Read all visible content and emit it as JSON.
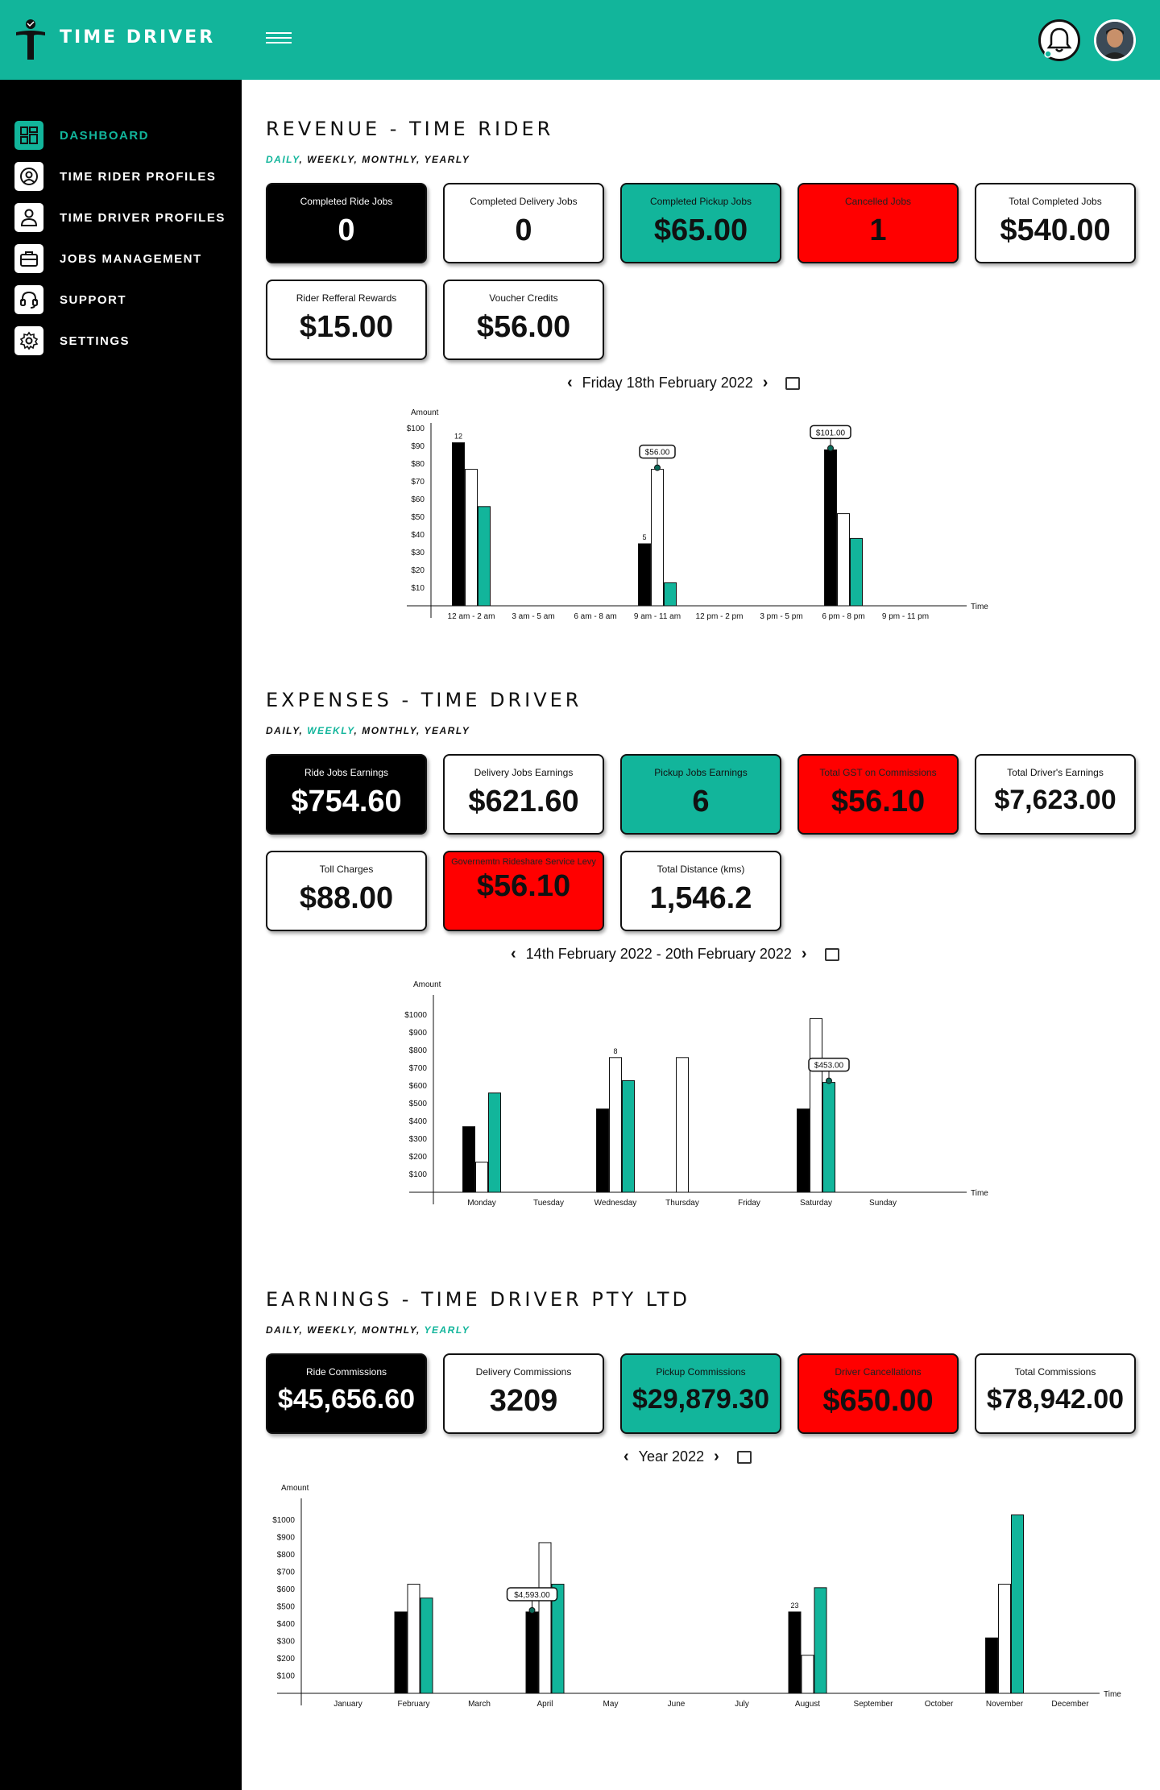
{
  "header": {
    "brand": "TIME DRIVER",
    "menu_icon": "hamburger-icon",
    "notification_icon": "bell-icon",
    "avatar_icon": "user-avatar"
  },
  "sidebar": {
    "items": [
      {
        "label": "DASHBOARD",
        "icon": "dashboard-icon",
        "active": true
      },
      {
        "label": "TIME RIDER PROFILES",
        "icon": "user-circle-icon"
      },
      {
        "label": "TIME DRIVER PROFILES",
        "icon": "user-icon"
      },
      {
        "label": "JOBS MANAGEMENT",
        "icon": "briefcase-icon"
      },
      {
        "label": "SUPPORT",
        "icon": "headset-icon"
      },
      {
        "label": "SETTINGS",
        "icon": "gear-icon"
      }
    ]
  },
  "colors": {
    "accent": "#12b59b",
    "alert": "#ff0000",
    "dark": "#000000"
  },
  "revenue": {
    "title": "REVENUE - TIME RIDER",
    "periods": [
      "DAILY",
      "WEEKLY",
      "MONTHLY",
      "YEARLY"
    ],
    "selected_period": "DAILY",
    "cards": [
      {
        "label": "Completed Ride Jobs",
        "value": "0"
      },
      {
        "label": "Completed Delivery Jobs",
        "value": "0"
      },
      {
        "label": "Completed Pickup Jobs",
        "value": "$65.00"
      },
      {
        "label": "Cancelled Jobs",
        "value": "1"
      },
      {
        "label": "Total Completed Jobs",
        "value": "$540.00"
      },
      {
        "label": "Rider Refferal Rewards",
        "value": "$15.00"
      },
      {
        "label": "Voucher Credits",
        "value": "$56.00"
      }
    ],
    "date_label": "Friday 18th February 2022"
  },
  "expenses": {
    "title": "EXPENSES - TIME DRIVER",
    "periods": [
      "DAILY",
      "WEEKLY",
      "MONTHLY",
      "YEARLY"
    ],
    "selected_period": "WEEKLY",
    "cards": [
      {
        "label": "Ride Jobs Earnings",
        "value": "$754.60"
      },
      {
        "label": "Delivery Jobs Earnings",
        "value": "$621.60"
      },
      {
        "label": "Pickup Jobs Earnings",
        "value": "6"
      },
      {
        "label": "Total GST on Commissions",
        "value": "$56.10"
      },
      {
        "label": "Total Driver's Earnings",
        "value": "$7,623.00"
      },
      {
        "label": "Toll Charges",
        "value": "$88.00"
      },
      {
        "label": "Governemtn Rideshare Service Levy",
        "value": "$56.10"
      },
      {
        "label": "Total Distance (kms)",
        "value": "1,546.2"
      }
    ],
    "date_label": "14th February 2022 - 20th February 2022"
  },
  "earnings": {
    "title": "EARNINGS - TIME DRIVER PTY LTD",
    "periods": [
      "DAILY",
      "WEEKLY",
      "MONTHLY",
      "YEARLY"
    ],
    "selected_period": "YEARLY",
    "cards": [
      {
        "label": "Ride Commissions",
        "value": "$45,656.60"
      },
      {
        "label": "Delivery Commissions",
        "value": "3209"
      },
      {
        "label": "Pickup Commissions",
        "value": "$29,879.30"
      },
      {
        "label": "Driver Cancellations",
        "value": "$650.00"
      },
      {
        "label": "Total Commissions",
        "value": "$78,942.00"
      }
    ],
    "date_label": "Year 2022"
  },
  "chart_data": [
    {
      "type": "bar",
      "ylabel": "Amount",
      "xlabel": "Time",
      "yticks": [
        "$10",
        "$20",
        "$30",
        "$40",
        "$50",
        "$60",
        "$70",
        "$80",
        "$90",
        "$100"
      ],
      "ylim": [
        0,
        100
      ],
      "categories": [
        "12 am - 2 am",
        "3 am - 5 am",
        "6 am - 8 am",
        "9 am - 11 am",
        "12 pm - 2 pm",
        "3 pm - 5 pm",
        "6 pm - 8 pm",
        "9 pm - 11 pm"
      ],
      "series": [
        {
          "values": [
            92,
            null,
            null,
            35,
            null,
            null,
            88,
            null
          ],
          "color": "#000000"
        },
        {
          "values": [
            77,
            null,
            null,
            77,
            null,
            null,
            52,
            null
          ],
          "color": "#ffffff"
        },
        {
          "values": [
            56,
            null,
            null,
            13,
            null,
            null,
            38,
            null
          ],
          "color": "#12b59b"
        }
      ],
      "annotations": [
        {
          "text": "12",
          "category": 0,
          "series": 0
        },
        {
          "text": "5",
          "category": 3,
          "series": 0
        },
        {
          "text": "$56.00",
          "category": 3,
          "series": 1,
          "callout": true
        },
        {
          "text": "$101.00",
          "category": 6,
          "series": 0,
          "callout": true
        }
      ]
    },
    {
      "type": "bar",
      "ylabel": "Amount",
      "xlabel": "Time",
      "yticks": [
        "$100",
        "$200",
        "$300",
        "$400",
        "$500",
        "$600",
        "$700",
        "$800",
        "$900",
        "$1000"
      ],
      "ylim": [
        0,
        1000
      ],
      "categories": [
        "Monday",
        "Tuesday",
        "Wednesday",
        "Thursday",
        "Friday",
        "Saturday",
        "Sunday"
      ],
      "series": [
        {
          "values": [
            370,
            null,
            470,
            null,
            null,
            470,
            null
          ],
          "color": "#000000"
        },
        {
          "values": [
            170,
            null,
            760,
            760,
            null,
            980,
            null
          ],
          "color": "#ffffff"
        },
        {
          "values": [
            560,
            null,
            630,
            null,
            null,
            620,
            null
          ],
          "color": "#12b59b"
        }
      ],
      "annotations": [
        {
          "text": "8",
          "category": 2,
          "series": 1
        },
        {
          "text": "$453.00",
          "category": 5,
          "series": 2,
          "callout": true
        }
      ]
    },
    {
      "type": "bar",
      "ylabel": "Amount",
      "xlabel": "Time",
      "yticks": [
        "$100",
        "$200",
        "$300",
        "$400",
        "$500",
        "$600",
        "$700",
        "$800",
        "$900",
        "$1000"
      ],
      "ylim": [
        0,
        1000
      ],
      "categories": [
        "January",
        "February",
        "March",
        "April",
        "May",
        "June",
        "July",
        "August",
        "September",
        "October",
        "November",
        "December"
      ],
      "series": [
        {
          "values": [
            null,
            470,
            null,
            470,
            null,
            null,
            null,
            470,
            null,
            null,
            320,
            null
          ],
          "color": "#000000"
        },
        {
          "values": [
            null,
            630,
            null,
            870,
            null,
            null,
            null,
            220,
            null,
            null,
            630,
            null
          ],
          "color": "#ffffff"
        },
        {
          "values": [
            null,
            550,
            null,
            630,
            null,
            null,
            null,
            610,
            null,
            null,
            1030,
            null
          ],
          "color": "#12b59b"
        }
      ],
      "annotations": [
        {
          "text": "$4,593.00",
          "category": 3,
          "series": 0,
          "callout": true
        },
        {
          "text": "23",
          "category": 7,
          "series": 0
        }
      ]
    }
  ]
}
